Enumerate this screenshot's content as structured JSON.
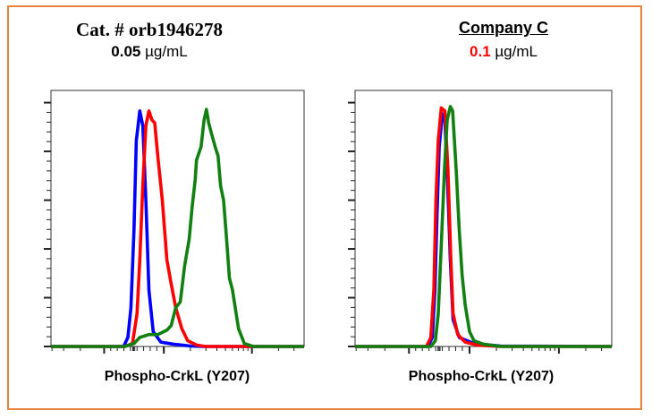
{
  "panels": [
    {
      "title": "Cat. # orb1946278",
      "conc_value": "0.05",
      "conc_unit": " µg/mL",
      "conc_color": "#000000"
    },
    {
      "title": "Company C",
      "conc_value": "0.1",
      "conc_unit": " µg/mL",
      "conc_color": "#FF0000"
    }
  ],
  "frame_color": "#E8823C",
  "chart_data": [
    {
      "type": "line",
      "title": "Cat. # orb1946278 0.05 µg/mL",
      "xlabel": "Phospho-CrkL (Y207)",
      "ylabel": "",
      "xlim": [
        0,
        100
      ],
      "ylim": [
        0,
        105
      ],
      "grid": false,
      "series": [
        {
          "color": "#0000FF",
          "points": [
            [
              0,
              0
            ],
            [
              28.7,
              0
            ],
            [
              30.4,
              3.7
            ],
            [
              31.6,
              15.9
            ],
            [
              32.8,
              47.7
            ],
            [
              33.7,
              84.4
            ],
            [
              35.1,
              96.6
            ],
            [
              36.3,
              90.5
            ],
            [
              37.5,
              59.9
            ],
            [
              38.7,
              23.2
            ],
            [
              40.4,
              6.1
            ],
            [
              43.4,
              1.8
            ],
            [
              48.1,
              1.0
            ],
            [
              55.2,
              0.2
            ],
            [
              59.9,
              0
            ],
            [
              100,
              0
            ]
          ]
        },
        {
          "color": "#FF0000",
          "points": [
            [
              0,
              0
            ],
            [
              29.2,
              0
            ],
            [
              32.2,
              1.2
            ],
            [
              34.0,
              13.4
            ],
            [
              35.1,
              35.5
            ],
            [
              36.3,
              66.0
            ],
            [
              37.5,
              90.5
            ],
            [
              38.7,
              96.6
            ],
            [
              39.9,
              92.9
            ],
            [
              41.0,
              91.7
            ],
            [
              42.2,
              78.2
            ],
            [
              44.0,
              59.9
            ],
            [
              45.8,
              35.5
            ],
            [
              47.5,
              25.7
            ],
            [
              49.3,
              15.9
            ],
            [
              51.7,
              7.3
            ],
            [
              54.0,
              2.4
            ],
            [
              57.5,
              0.6
            ],
            [
              61.1,
              0
            ],
            [
              100,
              0
            ]
          ]
        },
        {
          "color": "#118011",
          "points": [
            [
              0,
              0
            ],
            [
              29.2,
              0
            ],
            [
              32.8,
              1.2
            ],
            [
              35.1,
              3.7
            ],
            [
              38.7,
              4.9
            ],
            [
              42.2,
              4.9
            ],
            [
              45.8,
              6.7
            ],
            [
              47.5,
              8.6
            ],
            [
              49.3,
              15.9
            ],
            [
              51.1,
              18.3
            ],
            [
              52.8,
              33.0
            ],
            [
              54.6,
              44.0
            ],
            [
              55.8,
              57.5
            ],
            [
              57.0,
              68.5
            ],
            [
              57.5,
              76.4
            ],
            [
              59.3,
              81.9
            ],
            [
              60.5,
              92.9
            ],
            [
              61.4,
              97.2
            ],
            [
              62.3,
              91.7
            ],
            [
              63.4,
              87.4
            ],
            [
              65.2,
              80.7
            ],
            [
              66.0,
              78.2
            ],
            [
              67.0,
              66.0
            ],
            [
              68.2,
              59.9
            ],
            [
              69.3,
              45.2
            ],
            [
              70.5,
              28.1
            ],
            [
              71.7,
              23.2
            ],
            [
              74.1,
              7.3
            ],
            [
              76.4,
              1.2
            ],
            [
              80.0,
              0
            ],
            [
              100,
              0
            ]
          ]
        }
      ]
    },
    {
      "type": "line",
      "title": "Company C 0.1 µg/mL",
      "xlabel": "Phospho-CrkL (Y207)",
      "ylabel": "",
      "xlim": [
        0,
        100
      ],
      "ylim": [
        0,
        105
      ],
      "grid": false,
      "series": [
        {
          "color": "#0000FF",
          "points": [
            [
              0,
              0
            ],
            [
              28.4,
              0
            ],
            [
              30.1,
              3.7
            ],
            [
              31.1,
              23.2
            ],
            [
              31.9,
              53.8
            ],
            [
              32.8,
              81.9
            ],
            [
              34.0,
              95.4
            ],
            [
              35.0,
              92.9
            ],
            [
              35.9,
              72.1
            ],
            [
              37.1,
              35.5
            ],
            [
              38.2,
              11.0
            ],
            [
              40.6,
              3.7
            ],
            [
              46.3,
              1.2
            ],
            [
              56.8,
              0.2
            ],
            [
              100,
              0
            ]
          ]
        },
        {
          "color": "#FF0000",
          "points": [
            [
              0,
              0
            ],
            [
              27.8,
              0
            ],
            [
              29.5,
              3.7
            ],
            [
              30.7,
              23.2
            ],
            [
              31.5,
              59.9
            ],
            [
              32.4,
              84.4
            ],
            [
              33.6,
              97.8
            ],
            [
              35.0,
              96.6
            ],
            [
              36.2,
              72.1
            ],
            [
              37.3,
              35.5
            ],
            [
              38.2,
              13.4
            ],
            [
              40.0,
              4.9
            ],
            [
              42.9,
              1.8
            ],
            [
              47.5,
              0.6
            ],
            [
              56.8,
              0
            ],
            [
              100,
              0
            ]
          ]
        },
        {
          "color": "#118011",
          "points": [
            [
              0,
              0
            ],
            [
              29.5,
              0
            ],
            [
              31.3,
              2.4
            ],
            [
              32.4,
              13.4
            ],
            [
              33.6,
              41.6
            ],
            [
              34.8,
              72.1
            ],
            [
              35.9,
              92.9
            ],
            [
              37.1,
              98.4
            ],
            [
              38.0,
              96.6
            ],
            [
              39.4,
              72.1
            ],
            [
              40.6,
              47.7
            ],
            [
              41.7,
              29.3
            ],
            [
              42.9,
              17.1
            ],
            [
              44.6,
              6.1
            ],
            [
              46.3,
              2.4
            ],
            [
              49.8,
              1.0
            ],
            [
              56.8,
              0
            ],
            [
              100,
              0
            ]
          ]
        }
      ]
    }
  ]
}
